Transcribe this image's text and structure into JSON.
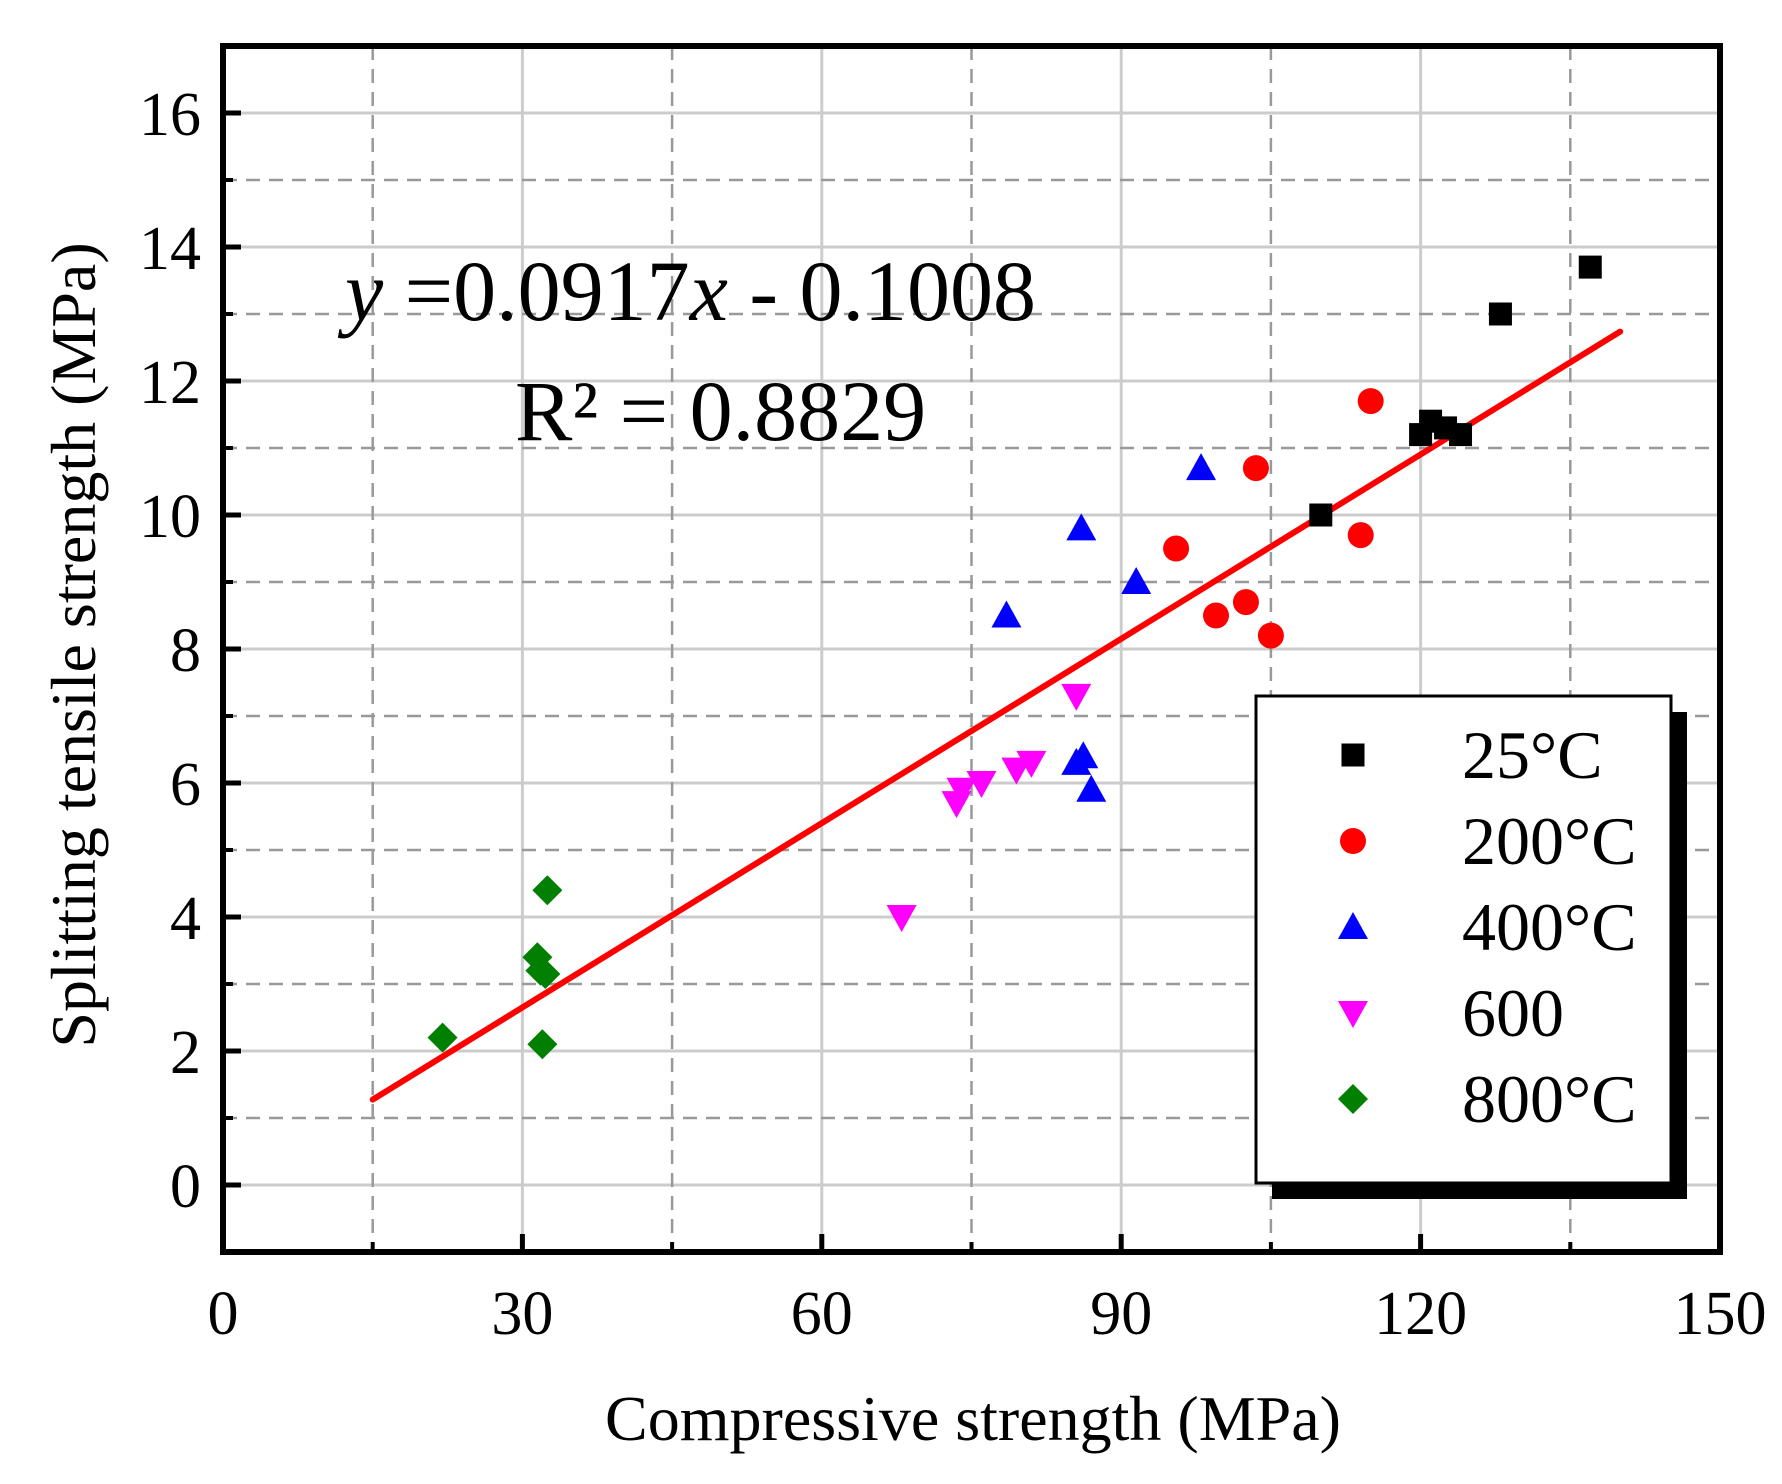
{
  "chart_data": {
    "type": "scatter",
    "xlabel": "Compressive strength (MPa)",
    "ylabel": "Splitting tensile strength (MPa)",
    "xlim": [
      0,
      150
    ],
    "ylim": [
      -1,
      17
    ],
    "xticks": [
      0,
      30,
      60,
      90,
      120,
      150
    ],
    "yticks": [
      0,
      2,
      4,
      6,
      8,
      10,
      12,
      14,
      16
    ],
    "xtick_labels": [
      "0",
      "30",
      "60",
      "90",
      "120",
      "150"
    ],
    "ytick_labels": [
      "0",
      "2",
      "4",
      "6",
      "8",
      "10",
      "12",
      "14",
      "16"
    ],
    "grid": true,
    "legend_position": "bottom-right",
    "series": [
      {
        "name": "25°C",
        "marker": "square",
        "color": "#000000",
        "points": [
          [
            110,
            10.0
          ],
          [
            120,
            11.2
          ],
          [
            121,
            11.4
          ],
          [
            122.5,
            11.3
          ],
          [
            124,
            11.2
          ],
          [
            128,
            13.0
          ],
          [
            137,
            13.7
          ]
        ]
      },
      {
        "name": "200°C",
        "marker": "circle",
        "color": "#ff0000",
        "points": [
          [
            95.5,
            9.5
          ],
          [
            99.5,
            8.5
          ],
          [
            102.5,
            8.7
          ],
          [
            103.5,
            10.7
          ],
          [
            105,
            8.2
          ],
          [
            114,
            9.7
          ],
          [
            115,
            11.7
          ]
        ]
      },
      {
        "name": "400°C",
        "marker": "triangle-up",
        "color": "#0000ff",
        "points": [
          [
            78.5,
            8.5
          ],
          [
            85.5,
            6.3
          ],
          [
            86,
            9.8
          ],
          [
            86.2,
            6.4
          ],
          [
            87,
            5.9
          ],
          [
            91.5,
            9.0
          ],
          [
            98,
            10.7
          ]
        ]
      },
      {
        "name": "600",
        "marker": "triangle-down",
        "color": "#ff00ff",
        "points": [
          [
            68,
            4.0
          ],
          [
            73.5,
            5.7
          ],
          [
            74,
            5.9
          ],
          [
            76,
            6.0
          ],
          [
            79.5,
            6.2
          ],
          [
            81,
            6.3
          ],
          [
            85.5,
            7.3
          ]
        ]
      },
      {
        "name": "800°C",
        "marker": "diamond",
        "color": "#007f00",
        "points": [
          [
            22,
            2.2
          ],
          [
            31.5,
            3.4
          ],
          [
            31.8,
            3.2
          ],
          [
            32,
            2.1
          ],
          [
            32.3,
            3.15
          ],
          [
            32.5,
            4.4
          ]
        ]
      }
    ],
    "fit": {
      "equation_prefix": "y",
      "equation_rest": " =0.0917",
      "equation_var": "x",
      "equation_tail": " - 0.1008",
      "r2_text": "R² = 0.8829",
      "slope": 0.0917,
      "intercept": -0.1008,
      "x_range": [
        15,
        140
      ],
      "color": "#ff0000"
    }
  }
}
